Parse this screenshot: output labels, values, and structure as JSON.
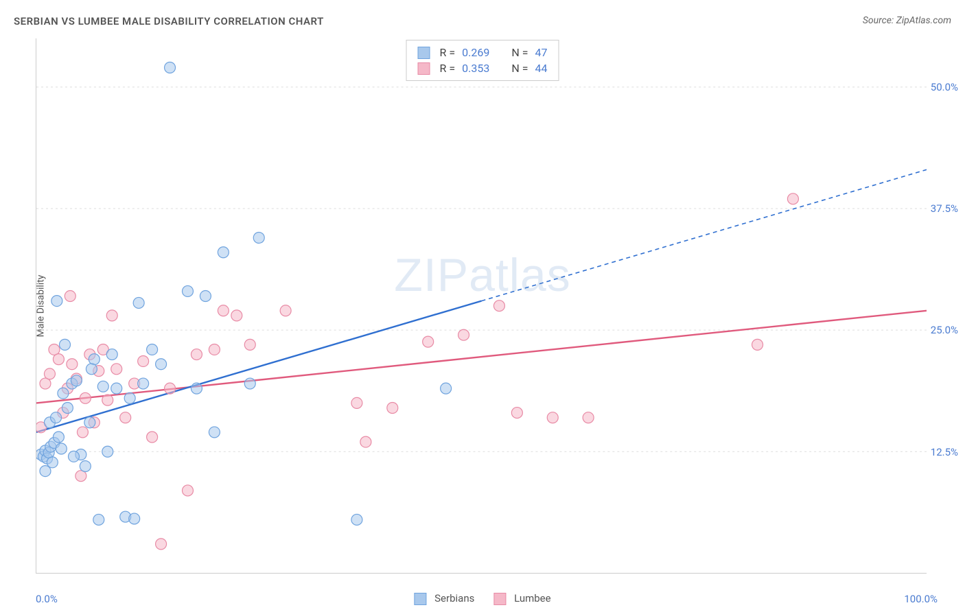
{
  "header": {
    "title": "SERBIAN VS LUMBEE MALE DISABILITY CORRELATION CHART",
    "source": "Source: ZipAtlas.com"
  },
  "watermark": {
    "part1": "ZIP",
    "part2": "atlas"
  },
  "chart": {
    "type": "scatter",
    "ylabel": "Male Disability",
    "xlim": [
      0,
      100
    ],
    "ylim": [
      0,
      55
    ],
    "xticks": [
      0,
      10,
      20,
      30,
      40,
      50,
      60,
      70,
      80,
      90,
      100
    ],
    "yticks": [
      12.5,
      25.0,
      37.5,
      50.0
    ],
    "ytick_labels": [
      "12.5%",
      "25.0%",
      "37.5%",
      "50.0%"
    ],
    "xmin_label": "0.0%",
    "xmax_label": "100.0%",
    "grid_color": "#dddddd",
    "axis_color": "#cccccc",
    "background_color": "#ffffff",
    "label_color": "#4a7bd0",
    "text_color": "#555555",
    "marker_radius": 8,
    "marker_opacity": 0.55,
    "line_width": 2.4,
    "series": [
      {
        "name": "Serbians",
        "color_fill": "#a8c8ec",
        "color_stroke": "#6fa3de",
        "line_color": "#2f6fd0",
        "R": "0.269",
        "N": "47",
        "trend": {
          "x1": 0,
          "y1": 14.5,
          "x2": 50,
          "y2": 28.0,
          "proj_x2": 100,
          "proj_y2": 41.5
        },
        "points": [
          [
            0.5,
            12.2
          ],
          [
            0.8,
            12.0
          ],
          [
            1.0,
            12.6
          ],
          [
            1.2,
            11.8
          ],
          [
            1.4,
            12.4
          ],
          [
            1.6,
            13.0
          ],
          [
            1.8,
            11.4
          ],
          [
            2.0,
            13.4
          ],
          [
            1.0,
            10.5
          ],
          [
            1.5,
            15.5
          ],
          [
            2.2,
            16.0
          ],
          [
            2.5,
            14.0
          ],
          [
            2.8,
            12.8
          ],
          [
            3.0,
            18.5
          ],
          [
            3.5,
            17.0
          ],
          [
            4.0,
            19.5
          ],
          [
            4.5,
            19.8
          ],
          [
            5.0,
            12.2
          ],
          [
            5.5,
            11.0
          ],
          [
            6.0,
            15.5
          ],
          [
            6.5,
            22.0
          ],
          [
            7.0,
            5.5
          ],
          [
            8.0,
            12.5
          ],
          [
            8.5,
            22.5
          ],
          [
            9.0,
            19.0
          ],
          [
            10.0,
            5.8
          ],
          [
            10.5,
            18.0
          ],
          [
            11.0,
            5.6
          ],
          [
            11.5,
            27.8
          ],
          [
            12.0,
            19.5
          ],
          [
            13.0,
            23.0
          ],
          [
            14.0,
            21.5
          ],
          [
            15.0,
            52.0
          ],
          [
            17.0,
            29.0
          ],
          [
            18.0,
            19.0
          ],
          [
            19.0,
            28.5
          ],
          [
            20.0,
            14.5
          ],
          [
            21.0,
            33.0
          ],
          [
            24.0,
            19.5
          ],
          [
            25.0,
            34.5
          ],
          [
            36.0,
            5.5
          ],
          [
            46.0,
            19.0
          ],
          [
            2.3,
            28.0
          ],
          [
            3.2,
            23.5
          ],
          [
            4.2,
            12.0
          ],
          [
            6.2,
            21.0
          ],
          [
            7.5,
            19.2
          ]
        ]
      },
      {
        "name": "Lumbee",
        "color_fill": "#f5b8c8",
        "color_stroke": "#e88aa5",
        "line_color": "#e05a7d",
        "R": "0.353",
        "N": "44",
        "trend": {
          "x1": 0,
          "y1": 17.5,
          "x2": 100,
          "y2": 27.0
        },
        "points": [
          [
            0.5,
            15.0
          ],
          [
            1.0,
            19.5
          ],
          [
            1.5,
            20.5
          ],
          [
            2.0,
            23.0
          ],
          [
            2.5,
            22.0
          ],
          [
            3.0,
            16.5
          ],
          [
            3.5,
            19.0
          ],
          [
            4.0,
            21.5
          ],
          [
            4.5,
            20.0
          ],
          [
            5.0,
            10.0
          ],
          [
            5.5,
            18.0
          ],
          [
            6.0,
            22.5
          ],
          [
            6.5,
            15.5
          ],
          [
            7.0,
            20.8
          ],
          [
            7.5,
            23.0
          ],
          [
            8.0,
            17.8
          ],
          [
            8.5,
            26.5
          ],
          [
            9.0,
            21.0
          ],
          [
            10.0,
            16.0
          ],
          [
            11.0,
            19.5
          ],
          [
            12.0,
            21.8
          ],
          [
            13.0,
            14.0
          ],
          [
            14.0,
            3.0
          ],
          [
            15.0,
            19.0
          ],
          [
            17.0,
            8.5
          ],
          [
            18.0,
            22.5
          ],
          [
            20.0,
            23.0
          ],
          [
            21.0,
            27.0
          ],
          [
            22.5,
            26.5
          ],
          [
            24.0,
            23.5
          ],
          [
            28.0,
            27.0
          ],
          [
            36.0,
            17.5
          ],
          [
            37.0,
            13.5
          ],
          [
            40.0,
            17.0
          ],
          [
            44.0,
            23.8
          ],
          [
            48.0,
            24.5
          ],
          [
            52.0,
            27.5
          ],
          [
            54.0,
            16.5
          ],
          [
            58.0,
            16.0
          ],
          [
            62.0,
            16.0
          ],
          [
            81.0,
            23.5
          ],
          [
            85.0,
            38.5
          ],
          [
            3.8,
            28.5
          ],
          [
            5.2,
            14.5
          ]
        ]
      }
    ],
    "bottom_legend": [
      {
        "label": "Serbians",
        "fill": "#a8c8ec",
        "stroke": "#6fa3de"
      },
      {
        "label": "Lumbee",
        "fill": "#f5b8c8",
        "stroke": "#e88aa5"
      }
    ]
  }
}
